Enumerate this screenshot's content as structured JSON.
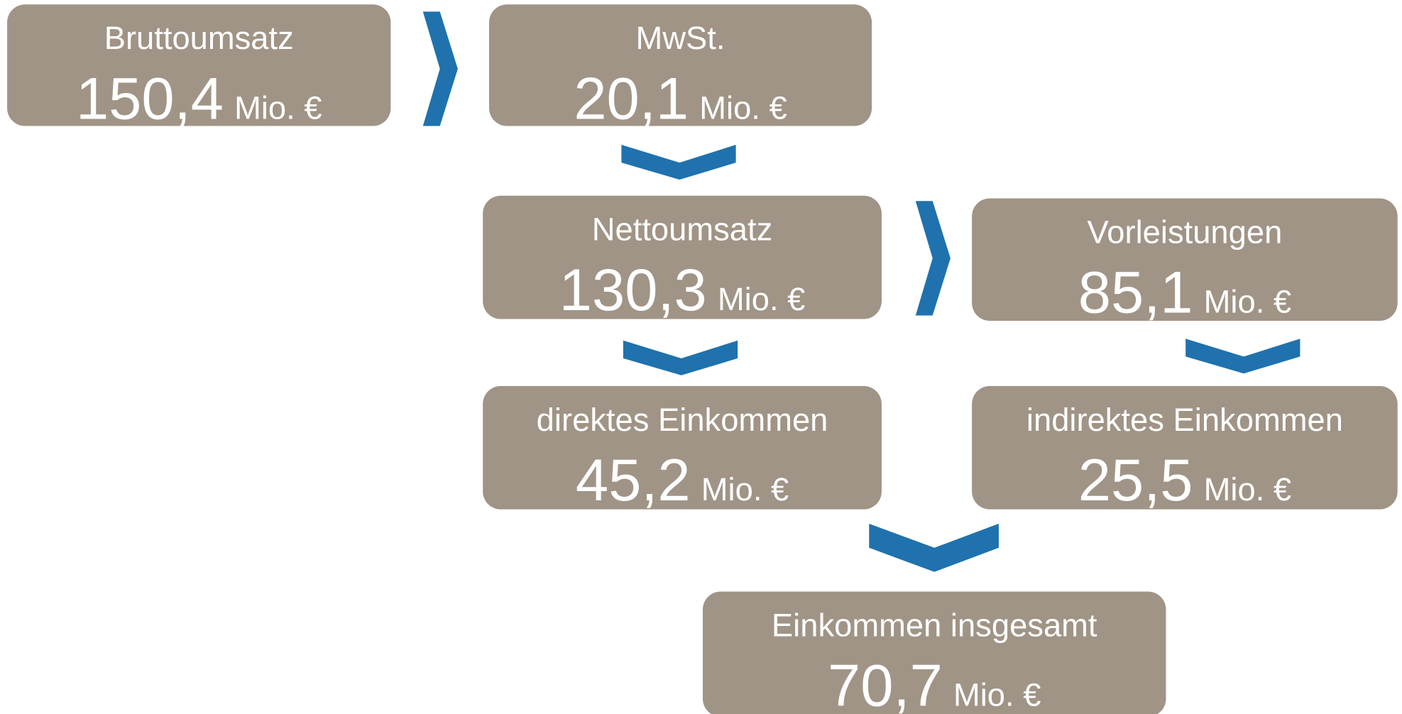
{
  "nodes": [
    {
      "label": "Bruttoumsatz",
      "value": "150,4",
      "unit": "Mio. €"
    },
    {
      "label": "MwSt.",
      "value": "20,1",
      "unit": "Mio. €"
    },
    {
      "label": "Nettoumsatz",
      "value": "130,3",
      "unit": "Mio. €"
    },
    {
      "label": "Vorleistungen",
      "value": "85,1",
      "unit": "Mio. €"
    },
    {
      "label": "direktes Einkommen",
      "value": "45,2",
      "unit": "Mio. €"
    },
    {
      "label": "indirektes Einkommen",
      "value": "25,5",
      "unit": "Mio. €"
    },
    {
      "label": "Einkommen insgesamt",
      "value": "70,7",
      "unit": "Mio. €"
    }
  ]
}
